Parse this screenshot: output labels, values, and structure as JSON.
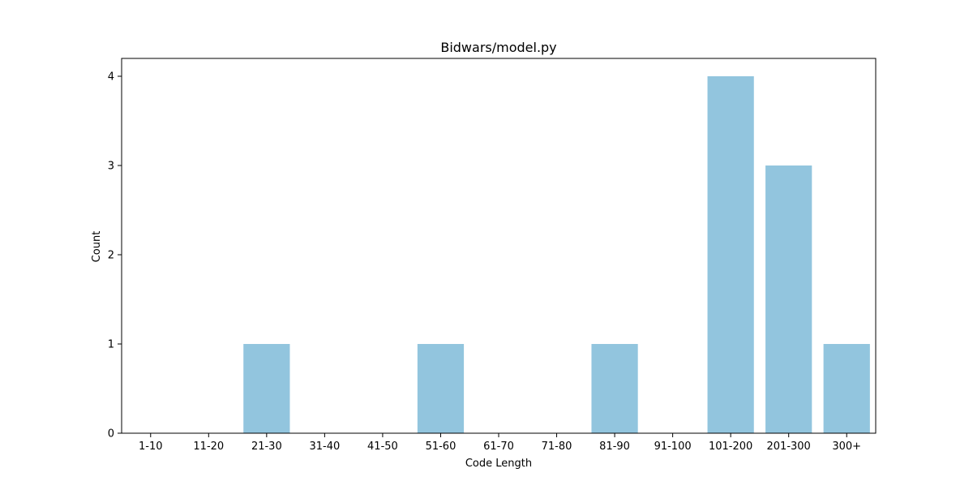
{
  "chart_data": {
    "type": "bar",
    "title": "Bidwars/model.py",
    "xlabel": "Code Length",
    "ylabel": "Count",
    "categories": [
      "1-10",
      "11-20",
      "21-30",
      "31-40",
      "41-50",
      "51-60",
      "61-70",
      "71-80",
      "81-90",
      "91-100",
      "101-200",
      "201-300",
      "300+"
    ],
    "values": [
      0,
      0,
      1,
      0,
      0,
      1,
      0,
      0,
      1,
      0,
      4,
      3,
      1
    ],
    "ylim": [
      0,
      4.2
    ],
    "yticks": [
      "0",
      "1",
      "2",
      "3",
      "4"
    ],
    "grid": false,
    "legend": "none",
    "bar_color": "#92c5de"
  }
}
